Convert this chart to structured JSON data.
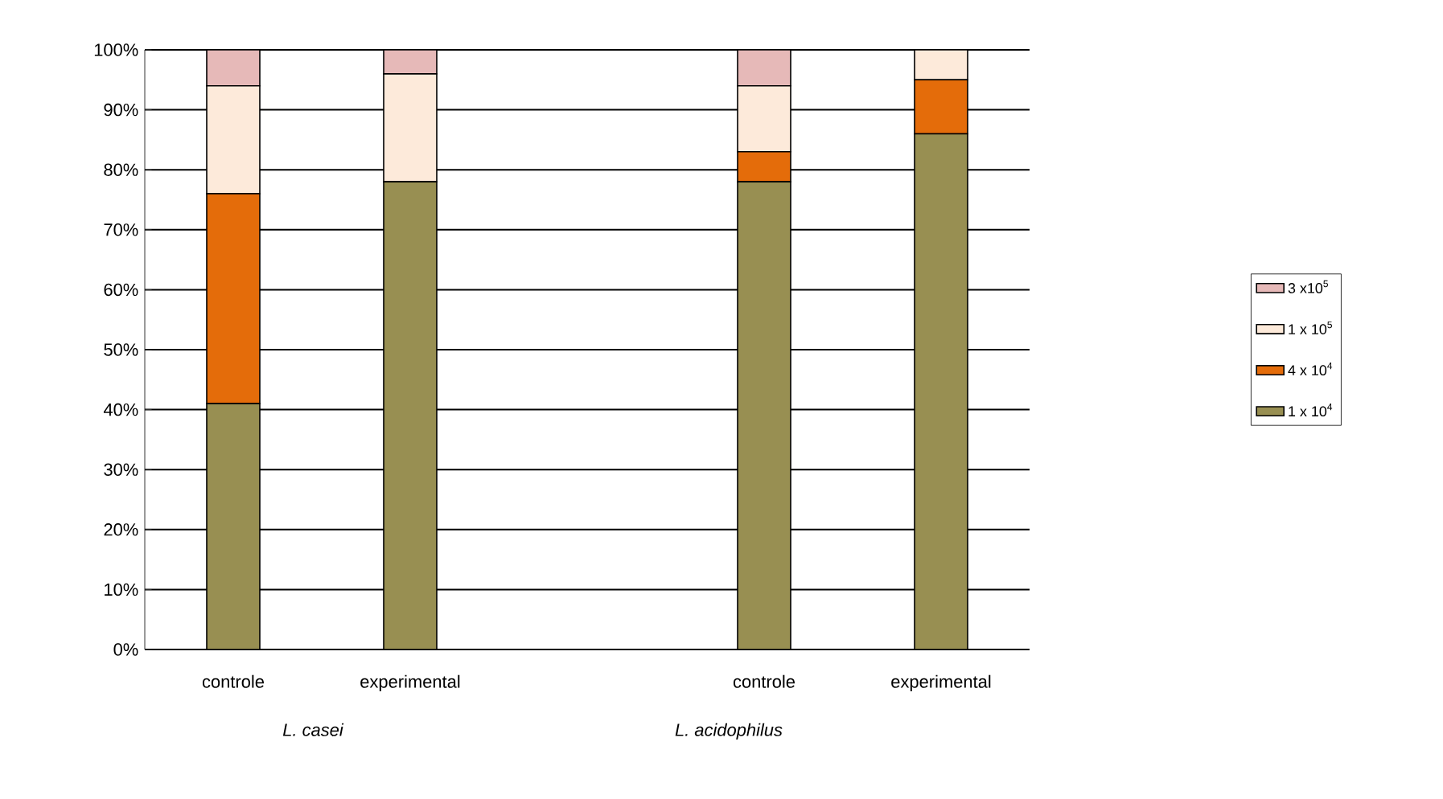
{
  "chart_data": {
    "type": "bar",
    "stacked": true,
    "categories": [
      "controle",
      "experimental",
      null,
      "controle",
      "experimental"
    ],
    "series": [
      {
        "name": "1 x 10$^{4}$",
        "color": "#988f52",
        "values": [
          41,
          78,
          null,
          78,
          86
        ]
      },
      {
        "name": "4 x 10$^{4}$",
        "color": "#e46c0a",
        "values": [
          35,
          0,
          null,
          5,
          9
        ]
      },
      {
        "name": "1 x 10$^{5}$",
        "color": "#fdeada",
        "values": [
          18,
          18,
          null,
          11,
          5
        ]
      },
      {
        "name": "3 x10$^{5}$",
        "color": "#e6b9b8",
        "values": [
          6,
          4,
          null,
          6,
          0
        ]
      }
    ],
    "ylim": [
      0,
      100
    ],
    "yticks": [
      {
        "value": 0,
        "label": "0%"
      },
      {
        "value": 10,
        "label": "10%"
      },
      {
        "value": 20,
        "label": "20%"
      },
      {
        "value": 30,
        "label": "30%"
      },
      {
        "value": 40,
        "label": "40%"
      },
      {
        "value": 50,
        "label": "50%"
      },
      {
        "value": 60,
        "label": "60%"
      },
      {
        "value": 70,
        "label": "70%"
      },
      {
        "value": 80,
        "label": "80%"
      },
      {
        "value": 90,
        "label": "90%"
      },
      {
        "value": 100,
        "label": "100%"
      }
    ],
    "grid": "y",
    "legend": "right",
    "annotations": [
      "*L. casei*",
      "*L. acidophilus*"
    ]
  }
}
